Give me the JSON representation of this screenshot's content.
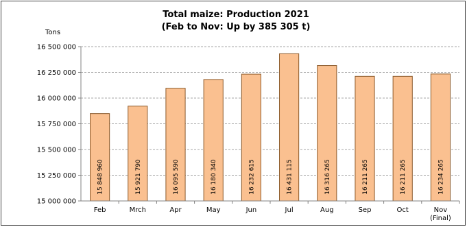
{
  "chart_data": {
    "type": "bar",
    "title": "Total maize: Production 2021",
    "subtitle": "(Feb to Nov: Up by 385 305 t)",
    "ylabel": "Tons",
    "xlabel": "",
    "categories": [
      "Feb",
      "Mrch",
      "Apr",
      "May",
      "Jun",
      "Jul",
      "Aug",
      "Sep",
      "Oct",
      "Nov|(Final)"
    ],
    "values": [
      15848960,
      15921790,
      16095590,
      16180340,
      16232615,
      16431115,
      16316265,
      16211265,
      16211265,
      16234265
    ],
    "data_labels": [
      "15 848 960",
      "15 921 790",
      "16 095 590",
      "16 180 340",
      "16 232 615",
      "16 431 115",
      "16 316 265",
      "16 211 265",
      "16 211 265",
      "16 234 265"
    ],
    "yticks": [
      15000000,
      15250000,
      15500000,
      15750000,
      16000000,
      16250000,
      16500000
    ],
    "ytick_labels": [
      "15 000 000",
      "15 250 000",
      "15 500 000",
      "15 750 000",
      "16 000 000",
      "16 250 000",
      "16 500 000"
    ],
    "ylim": [
      15000000,
      16500000
    ],
    "grid": true,
    "legend": "none",
    "colors": {
      "bar_fill": "#FAC090",
      "bar_stroke": "#8C5A2B",
      "grid": "#A6A6A6",
      "axis": "#808080",
      "border": "#404040"
    }
  }
}
